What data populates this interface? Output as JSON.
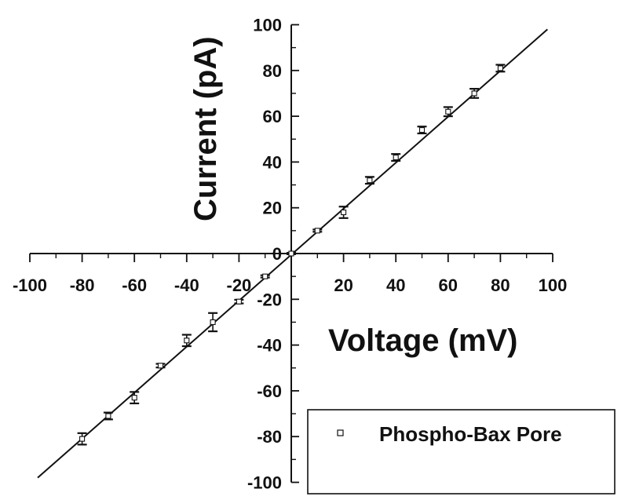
{
  "chart_data": {
    "type": "scatter",
    "xlabel": "Voltage (mV)",
    "ylabel": "Current (pA)",
    "xlim": [
      -100,
      100
    ],
    "ylim": [
      -100,
      100
    ],
    "x_ticks": [
      -100,
      -80,
      -60,
      -40,
      -20,
      0,
      20,
      40,
      60,
      80,
      100
    ],
    "y_ticks": [
      -100,
      -80,
      -60,
      -40,
      -20,
      0,
      20,
      40,
      60,
      80,
      100
    ],
    "grid": false,
    "legend_position": "bottom-right",
    "series": [
      {
        "name": "Phospho-Bax Pore",
        "marker": "open-square",
        "x": [
          -80,
          -70,
          -60,
          -50,
          -40,
          -30,
          -20,
          -10,
          0,
          10,
          20,
          30,
          40,
          50,
          60,
          70,
          80
        ],
        "y": [
          -81,
          -71,
          -63,
          -49,
          -38,
          -30,
          -21,
          -10,
          0,
          10,
          18,
          32,
          42,
          54,
          62,
          70,
          81
        ],
        "error": [
          2.5,
          1.5,
          2.5,
          0.8,
          2.5,
          4,
          0.8,
          0.5,
          0.3,
          0.5,
          2.5,
          1.5,
          1.5,
          1.5,
          2,
          2,
          1.5
        ]
      }
    ],
    "fit_line": {
      "x": [
        -97,
        98
      ],
      "y": [
        -98,
        98
      ]
    }
  }
}
